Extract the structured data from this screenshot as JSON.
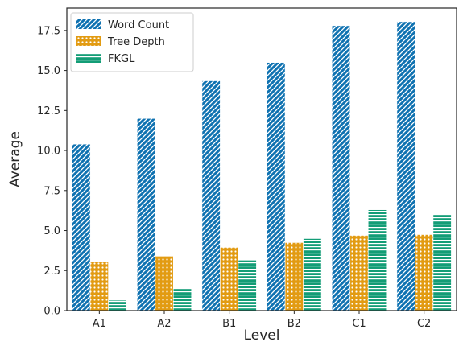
{
  "chart_data": {
    "type": "bar",
    "title": "",
    "xlabel": "Level",
    "ylabel": "Average",
    "categories": [
      "A1",
      "A2",
      "B1",
      "B2",
      "C1",
      "C2"
    ],
    "ylim": [
      0,
      18.9
    ],
    "yticks": [
      0.0,
      2.5,
      5.0,
      7.5,
      10.0,
      12.5,
      15.0,
      17.5
    ],
    "ytick_labels": [
      "0.0",
      "2.5",
      "5.0",
      "7.5",
      "10.0",
      "12.5",
      "15.0",
      "17.5"
    ],
    "grid": false,
    "legend_position": "top-left",
    "series": [
      {
        "name": "Word Count",
        "values": [
          10.4,
          12.0,
          14.35,
          15.5,
          17.8,
          18.05
        ],
        "color": "#0f72b1",
        "pattern": "diagonal-hatch"
      },
      {
        "name": "Tree Depth",
        "values": [
          3.05,
          3.4,
          3.95,
          4.25,
          4.7,
          4.75
        ],
        "color": "#e29b12",
        "pattern": "dots"
      },
      {
        "name": "FKGL",
        "values": [
          0.65,
          1.4,
          3.15,
          4.5,
          6.3,
          6.0
        ],
        "color": "#139d76",
        "pattern": "horizontal-lines"
      }
    ]
  }
}
